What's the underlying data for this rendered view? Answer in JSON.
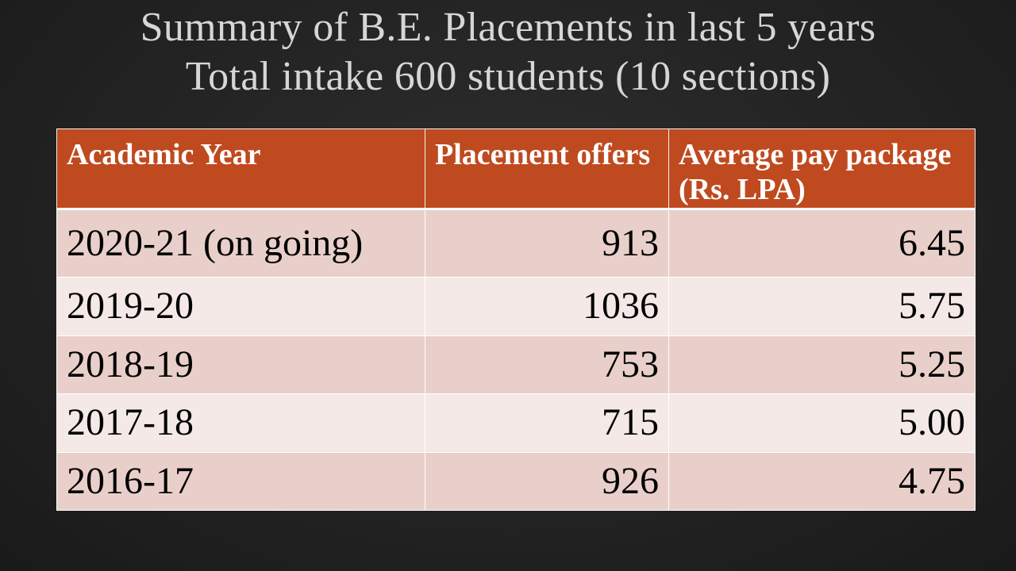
{
  "title": {
    "line1": "Summary of B.E. Placements in last 5 years",
    "line2": "Total intake 600 students (10 sections)"
  },
  "table": {
    "headers": [
      "Academic Year",
      "Placement offers",
      "Average pay package (Rs. LPA)"
    ],
    "rows": [
      {
        "year": "2020-21 (on going)",
        "offers": "913",
        "avg_package": "6.45"
      },
      {
        "year": "2019-20",
        "offers": "1036",
        "avg_package": "5.75"
      },
      {
        "year": "2018-19",
        "offers": "753",
        "avg_package": "5.25"
      },
      {
        "year": "2017-18",
        "offers": "715",
        "avg_package": "5.00"
      },
      {
        "year": "2016-17",
        "offers": "926",
        "avg_package": "4.75"
      }
    ]
  },
  "colors": {
    "background": "#232323",
    "title_text": "#d6d6d6",
    "header_fill": "#bf4a1f",
    "row_odd": "#e9cfca",
    "row_even": "#f4e9e7"
  }
}
